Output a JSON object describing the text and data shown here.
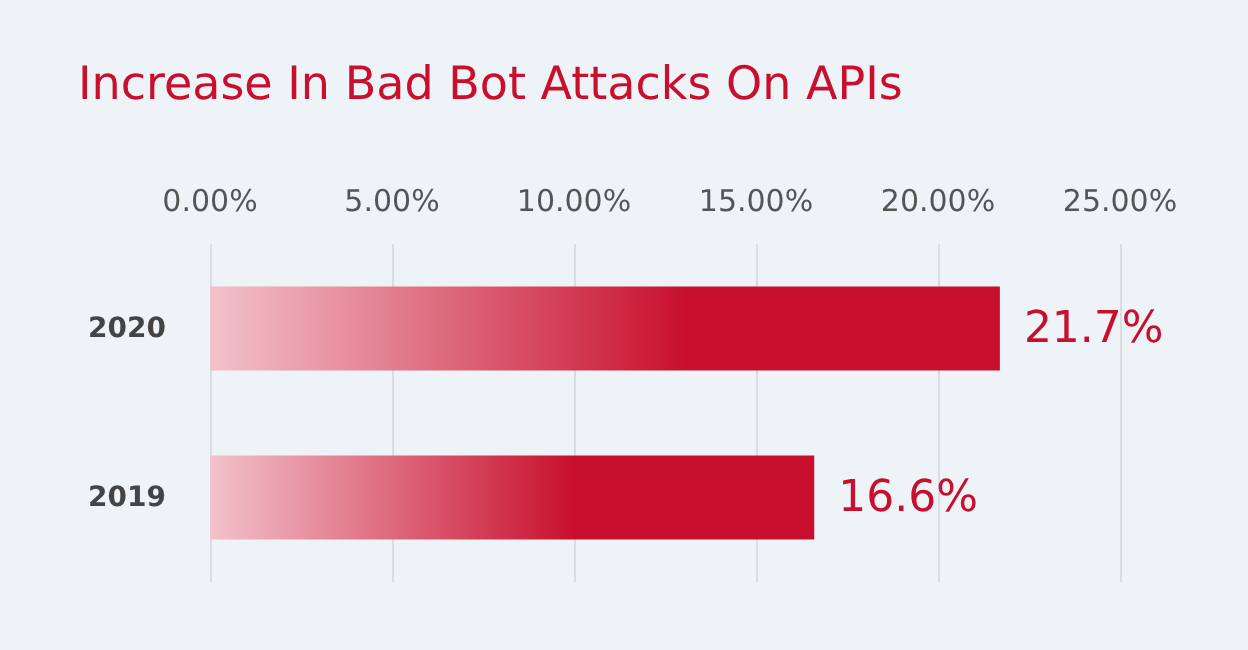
{
  "chart_data": {
    "type": "bar",
    "orientation": "horizontal",
    "title": "Increase In Bad Bot Attacks On APIs",
    "categories": [
      "2020",
      "2019"
    ],
    "values": [
      21.7,
      16.6
    ],
    "value_labels": [
      "21.7%",
      "16.6%"
    ],
    "color": "#c8102e",
    "xlim": [
      0,
      25
    ],
    "xticks": [
      {
        "value": 0,
        "label": "0.00%"
      },
      {
        "value": 5,
        "label": "5.00%"
      },
      {
        "value": 10,
        "label": "10.00%"
      },
      {
        "value": 15,
        "label": "15.00%"
      },
      {
        "value": 20,
        "label": "20.00%"
      },
      {
        "value": 25,
        "label": "25.00%"
      }
    ],
    "grid": "x"
  }
}
